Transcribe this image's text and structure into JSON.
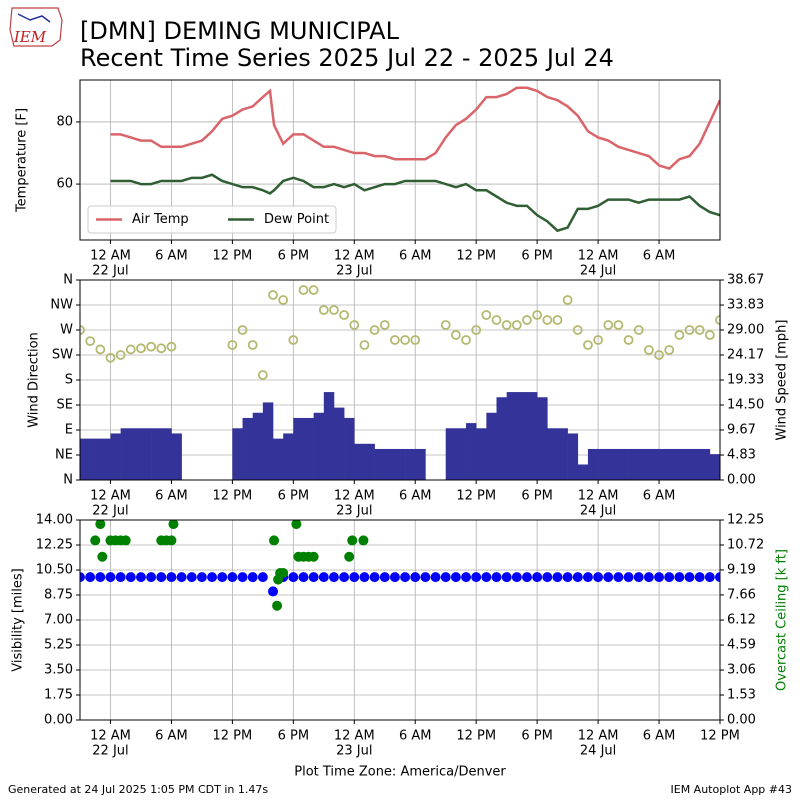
{
  "header": {
    "title": "[DMN] DEMING MUNICIPAL",
    "subtitle": "Recent Time Series 2025 Jul 22 - 2025 Jul 24",
    "logo": "IEM"
  },
  "footer": {
    "left": "Generated at 24 Jul 2025 1:05 PM CDT in 1.47s",
    "right": "IEM Autoplot App #43"
  },
  "chart_data": [
    {
      "type": "line",
      "ylabel": "Temperature [F]",
      "grid": true,
      "legend": "lower left",
      "xlim": [
        -3,
        60
      ],
      "ylim": [
        42,
        93.5
      ],
      "yticks": [
        60,
        80
      ],
      "xticks": [
        {
          "value": 0,
          "label": "12 AM"
        },
        {
          "value": 6,
          "label": "6 AM"
        },
        {
          "value": 12,
          "label": "12 PM"
        },
        {
          "value": 18,
          "label": "6 PM"
        },
        {
          "value": 24,
          "label": "12 AM"
        },
        {
          "value": 30,
          "label": "6 AM"
        },
        {
          "value": 36,
          "label": "12 PM"
        },
        {
          "value": 42,
          "label": "6 PM"
        },
        {
          "value": 48,
          "label": "12 AM"
        },
        {
          "value": 54,
          "label": "6 AM"
        }
      ],
      "xtick_dates": [
        {
          "value": 0,
          "label": "22 Jul"
        },
        {
          "value": 24,
          "label": "23 Jul"
        },
        {
          "value": 48,
          "label": "24 Jul"
        }
      ],
      "x": [
        0,
        1,
        2,
        3,
        4,
        5,
        6,
        7,
        8,
        9,
        10,
        11,
        12,
        13,
        14,
        15,
        15.7,
        16.1,
        17,
        18,
        19,
        20,
        21,
        22,
        23,
        24,
        25,
        26,
        27,
        28,
        29,
        30,
        31,
        32,
        33,
        34,
        35,
        36,
        37,
        38,
        39,
        40,
        41,
        42,
        43,
        44,
        45,
        46,
        47,
        48,
        49,
        50,
        51,
        52,
        53,
        54,
        55,
        56,
        57,
        58,
        59,
        60
      ],
      "series": [
        {
          "name": "Air Temp",
          "color": "#d9646a",
          "values": [
            76,
            76,
            75,
            74,
            74,
            72,
            72,
            72,
            73,
            74,
            77,
            81,
            82,
            84,
            85,
            88,
            90,
            79,
            73,
            76,
            76,
            74,
            72,
            72,
            71,
            70,
            70,
            69,
            69,
            68,
            68,
            68,
            68,
            70,
            75,
            79,
            81,
            84,
            88,
            88,
            89,
            91,
            91,
            90,
            88,
            87,
            85,
            82,
            77,
            75,
            74,
            72,
            71,
            70,
            69,
            66,
            65,
            68,
            69,
            73,
            80,
            87
          ]
        },
        {
          "name": "Dew Point",
          "color": "#2f5f32",
          "values": [
            61,
            61,
            61,
            60,
            60,
            61,
            61,
            61,
            62,
            62,
            63,
            61,
            60,
            59,
            59,
            58,
            57,
            58,
            61,
            62,
            61,
            59,
            59,
            60,
            59,
            60,
            58,
            59,
            60,
            60,
            61,
            61,
            61,
            61,
            60,
            59,
            60,
            58,
            58,
            56,
            54,
            53,
            53,
            50,
            48,
            45,
            46,
            52,
            52,
            53,
            55,
            55,
            55,
            54,
            55,
            55,
            55,
            55,
            56,
            53,
            51,
            50
          ]
        }
      ]
    },
    {
      "type": "bar",
      "ylabel": "Wind Direction",
      "y2label": "Wind Speed [mph]",
      "grid": true,
      "xlim": [
        -3,
        60
      ],
      "ylim": [
        0,
        360
      ],
      "y2lim": [
        0,
        38.67
      ],
      "yticks": [
        {
          "value": 0,
          "label": "N"
        },
        {
          "value": 45,
          "label": "NE"
        },
        {
          "value": 90,
          "label": "E"
        },
        {
          "value": 135,
          "label": "SE"
        },
        {
          "value": 180,
          "label": "S"
        },
        {
          "value": 225,
          "label": "SW"
        },
        {
          "value": 270,
          "label": "W"
        },
        {
          "value": 315,
          "label": "NW"
        },
        {
          "value": 360,
          "label": "N"
        }
      ],
      "y2ticks": [
        {
          "value": 0,
          "label": "0.00"
        },
        {
          "value": 4.83,
          "label": "4.83"
        },
        {
          "value": 9.67,
          "label": "9.67"
        },
        {
          "value": 14.5,
          "label": "14.50"
        },
        {
          "value": 19.33,
          "label": "19.33"
        },
        {
          "value": 24.17,
          "label": "24.17"
        },
        {
          "value": 29,
          "label": "29.00"
        },
        {
          "value": 33.83,
          "label": "33.83"
        },
        {
          "value": 38.67,
          "label": "38.67"
        }
      ],
      "xticks": [
        {
          "value": 0,
          "label": "12 AM"
        },
        {
          "value": 6,
          "label": "6 AM"
        },
        {
          "value": 12,
          "label": "12 PM"
        },
        {
          "value": 18,
          "label": "6 PM"
        },
        {
          "value": 24,
          "label": "12 AM"
        },
        {
          "value": 30,
          "label": "6 AM"
        },
        {
          "value": 36,
          "label": "12 PM"
        },
        {
          "value": 42,
          "label": "6 PM"
        },
        {
          "value": 48,
          "label": "12 AM"
        },
        {
          "value": 54,
          "label": "6 AM"
        }
      ],
      "xtick_dates": [
        {
          "value": 0,
          "label": "22 Jul"
        },
        {
          "value": 24,
          "label": "23 Jul"
        },
        {
          "value": 48,
          "label": "24 Jul"
        }
      ],
      "x": [
        -3,
        -2,
        -1,
        0,
        1,
        2,
        3,
        4,
        5,
        6,
        7,
        8,
        9,
        10,
        11,
        12,
        13,
        14,
        15,
        16,
        17,
        18,
        19,
        20,
        21,
        22,
        23,
        24,
        25,
        26,
        27,
        28,
        29,
        30,
        31,
        32,
        33,
        34,
        35,
        36,
        37,
        38,
        39,
        40,
        41,
        42,
        43,
        44,
        45,
        46,
        47,
        48,
        49,
        50,
        51,
        52,
        53,
        54,
        55,
        56,
        57,
        58,
        59,
        60
      ],
      "series": [
        {
          "type": "bar",
          "axis": "y2",
          "color": "#333399",
          "values": [
            8,
            8,
            8,
            9,
            10,
            10,
            10,
            10,
            10,
            9,
            null,
            null,
            null,
            null,
            null,
            10,
            12,
            13,
            15,
            8,
            9,
            12,
            12,
            13,
            17,
            14,
            12,
            7,
            7,
            6,
            6,
            6,
            6,
            6,
            null,
            null,
            10,
            10,
            11,
            10,
            13,
            16,
            17,
            17,
            17,
            16,
            10,
            10,
            9,
            3,
            6,
            6,
            6,
            6,
            6,
            6,
            6,
            6,
            6,
            6,
            6,
            6,
            5,
            4
          ]
        },
        {
          "type": "scatter",
          "axis": "y",
          "color": "#b5b86e",
          "hollow": true,
          "values": [
            270,
            250,
            235,
            220,
            225,
            235,
            237,
            240,
            237,
            240,
            null,
            null,
            null,
            null,
            null,
            243,
            270,
            243,
            189,
            333,
            324,
            252,
            342,
            342,
            306,
            306,
            297,
            279,
            243,
            270,
            279,
            252,
            252,
            252,
            null,
            null,
            279,
            261,
            252,
            270,
            297,
            288,
            279,
            279,
            288,
            297,
            288,
            288,
            324,
            270,
            243,
            252,
            279,
            279,
            252,
            270,
            234,
            225,
            234,
            261,
            270,
            270,
            261,
            288
          ]
        }
      ]
    },
    {
      "type": "scatter",
      "ylabel": "Visibility [miles]",
      "y2label": "Overcast Ceiling [k ft]",
      "y2label_color": "#008000",
      "xlabel": "Plot Time Zone: America/Denver",
      "grid": true,
      "xlim": [
        -3,
        60
      ],
      "ylim": [
        0,
        14
      ],
      "y2lim": [
        0,
        12.25
      ],
      "yticks": [
        {
          "value": 0,
          "label": "0.00"
        },
        {
          "value": 1.75,
          "label": "1.75"
        },
        {
          "value": 3.5,
          "label": "3.50"
        },
        {
          "value": 5.25,
          "label": "5.25"
        },
        {
          "value": 7,
          "label": "7.00"
        },
        {
          "value": 8.75,
          "label": "8.75"
        },
        {
          "value": 10.5,
          "label": "10.50"
        },
        {
          "value": 12.25,
          "label": "12.25"
        },
        {
          "value": 14,
          "label": "14.00"
        }
      ],
      "y2ticks": [
        {
          "value": 0,
          "label": "0.00"
        },
        {
          "value": 1.53,
          "label": "1.53"
        },
        {
          "value": 3.06,
          "label": "3.06"
        },
        {
          "value": 4.59,
          "label": "4.59"
        },
        {
          "value": 6.12,
          "label": "6.12"
        },
        {
          "value": 7.66,
          "label": "7.66"
        },
        {
          "value": 9.19,
          "label": "9.19"
        },
        {
          "value": 10.72,
          "label": "10.72"
        },
        {
          "value": 12.25,
          "label": "12.25"
        }
      ],
      "xticks": [
        {
          "value": 0,
          "label": "12 AM"
        },
        {
          "value": 6,
          "label": "6 AM"
        },
        {
          "value": 12,
          "label": "12 PM"
        },
        {
          "value": 18,
          "label": "6 PM"
        },
        {
          "value": 24,
          "label": "12 AM"
        },
        {
          "value": 30,
          "label": "6 AM"
        },
        {
          "value": 36,
          "label": "12 PM"
        },
        {
          "value": 42,
          "label": "6 PM"
        },
        {
          "value": 48,
          "label": "12 AM"
        },
        {
          "value": 54,
          "label": "6 AM"
        },
        {
          "value": 60,
          "label": "12 PM"
        }
      ],
      "xtick_dates": [
        {
          "value": 0,
          "label": "22 Jul"
        },
        {
          "value": 24,
          "label": "23 Jul"
        },
        {
          "value": 48,
          "label": "24 Jul"
        }
      ],
      "series": [
        {
          "type": "scatter",
          "axis": "y",
          "color": "#0000ff",
          "x": [
            -3,
            -2,
            -1,
            0,
            1,
            2,
            3,
            4,
            5,
            6,
            7,
            8,
            9,
            10,
            11,
            12,
            13,
            14,
            15,
            16,
            17,
            18,
            19,
            20,
            21,
            22,
            23,
            24,
            25,
            26,
            27,
            28,
            29,
            30,
            31,
            32,
            33,
            34,
            35,
            36,
            37,
            38,
            39,
            40,
            41,
            42,
            43,
            44,
            45,
            46,
            47,
            48,
            49,
            50,
            51,
            52,
            53,
            54,
            55,
            56,
            57,
            58,
            59,
            60
          ],
          "values": [
            10,
            10,
            10,
            10,
            10,
            10,
            10,
            10,
            10,
            10,
            10,
            10,
            10,
            10,
            10,
            10,
            10,
            10,
            10,
            9,
            10,
            10,
            10,
            10,
            10,
            10,
            10,
            10,
            10,
            10,
            10,
            10,
            10,
            10,
            10,
            10,
            10,
            10,
            10,
            10,
            10,
            10,
            10,
            10,
            10,
            10,
            10,
            10,
            10,
            10,
            10,
            10,
            10,
            10,
            10,
            10,
            10,
            10,
            10,
            10,
            10,
            10,
            10,
            10
          ]
        },
        {
          "type": "scatter",
          "axis": "y2",
          "color": "#008000",
          "x": [
            -1.5,
            -1,
            -0.8,
            0,
            0.5,
            1,
            1.5,
            5,
            5.5,
            6,
            6.2,
            16.1,
            16.4,
            16.5,
            16.7,
            17,
            18.3,
            18.5,
            19,
            19.5,
            20,
            23.5,
            23.8,
            24.9
          ],
          "values": [
            11,
            12,
            10,
            11,
            11,
            11,
            11,
            11,
            11,
            11,
            12,
            11,
            7,
            8.6,
            9,
            9,
            12,
            10,
            10,
            10,
            10,
            10,
            11,
            11
          ]
        }
      ]
    }
  ]
}
